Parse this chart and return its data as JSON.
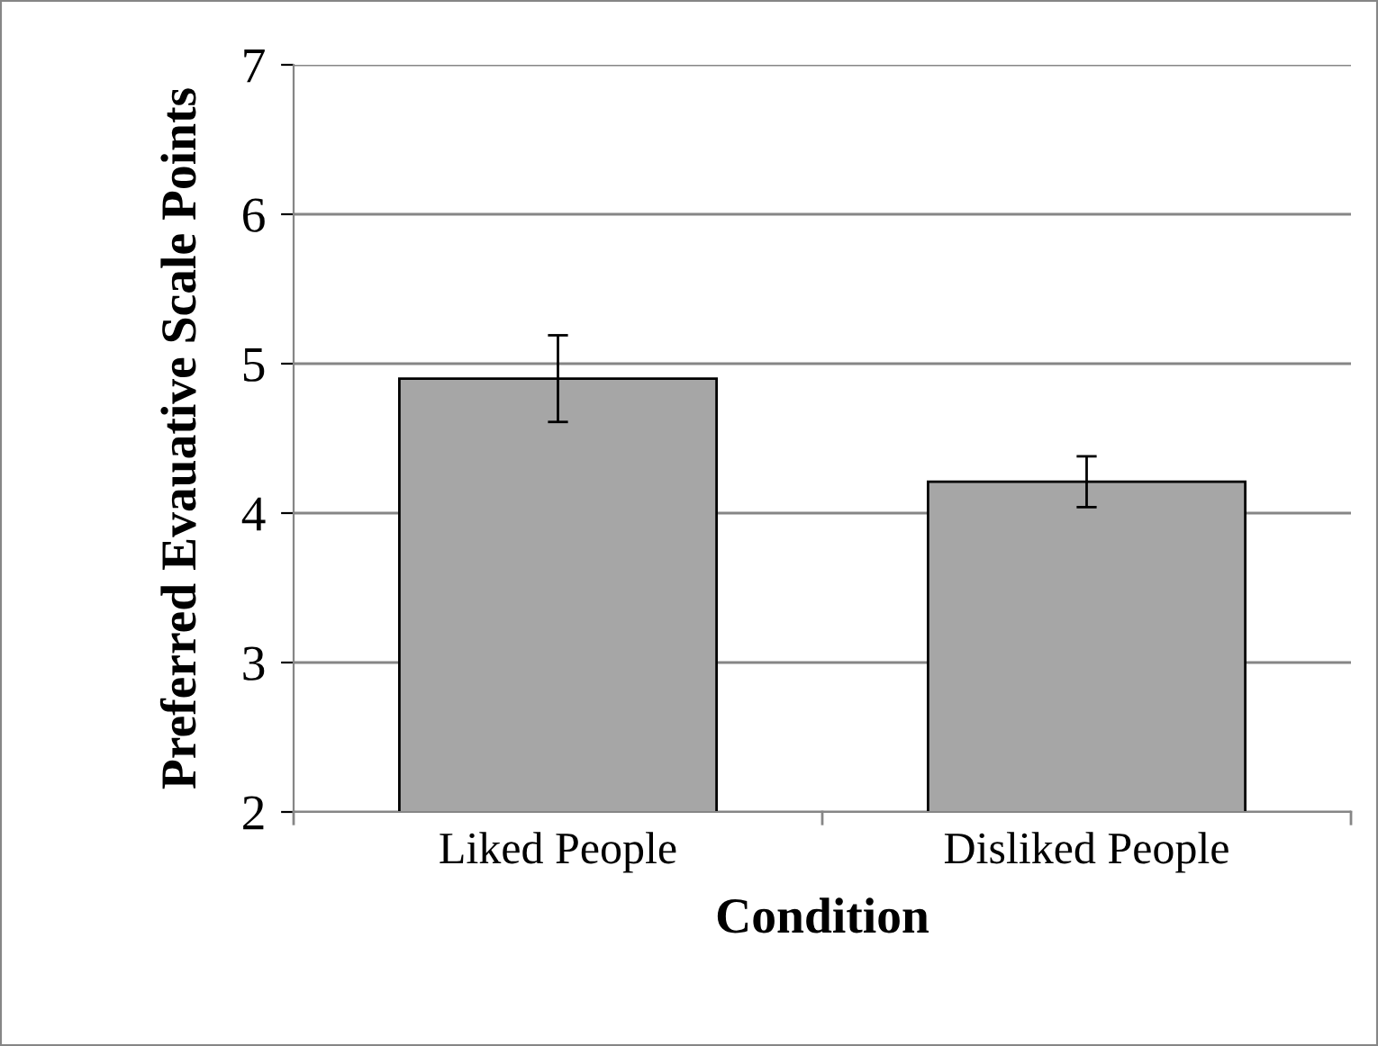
{
  "chart_data": {
    "type": "bar",
    "xlabel": "Condition",
    "ylabel": "Preferred Evauative Scale Points",
    "categories": [
      "Liked People",
      "Disliked People"
    ],
    "values": [
      4.9,
      4.21
    ],
    "errors": [
      0.29,
      0.17
    ],
    "color": "#a6a6a6",
    "ylim": [
      2,
      7
    ],
    "yticks": [
      2,
      3,
      4,
      5,
      6,
      7
    ],
    "grid": "y"
  }
}
